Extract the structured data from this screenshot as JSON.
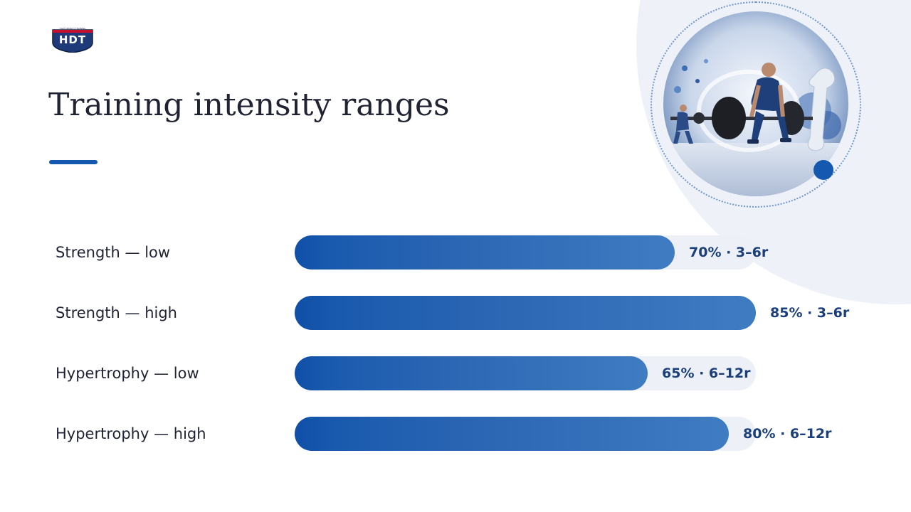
{
  "slide": {
    "title": "Training intensity ranges"
  },
  "logo": {
    "text": "HDT",
    "tagline": "HIGH DENSITY TRAINING"
  },
  "colors": {
    "accent": "#1558b0",
    "bar_start": "#0f4fa8",
    "bar_end": "#3f7cc2",
    "track": "#edf1f7",
    "title_text": "#1f2332",
    "value_text": "#1b3f7a"
  },
  "illustration": {
    "icon": "weightlifting-photo"
  },
  "rows": [
    {
      "label": "Strength — low",
      "value_label": "70% · 3–6r",
      "percent": 70
    },
    {
      "label": "Strength — high",
      "value_label": "85% · 3–6r",
      "percent": 85
    },
    {
      "label": "Hypertrophy — low",
      "value_label": "65% · 6–12r",
      "percent": 65
    },
    {
      "label": "Hypertrophy — high",
      "value_label": "80% · 6–12r",
      "percent": 80
    }
  ]
}
